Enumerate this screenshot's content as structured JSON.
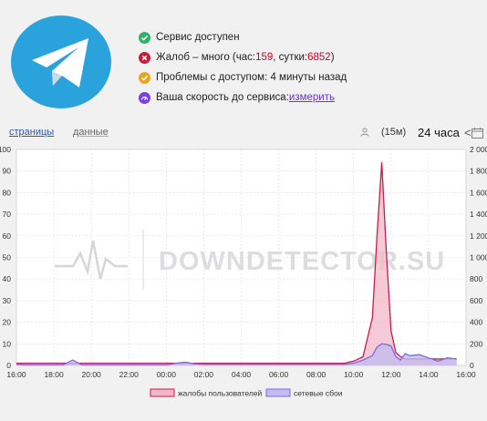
{
  "service": {
    "logo_icon": "telegram-paper-plane-icon",
    "brand_color": "#2aa3dc"
  },
  "status": {
    "available": "Сервис доступен",
    "complaints_prefix": "Жалоб – много (час: ",
    "complaints_hour": "159",
    "complaints_mid": ", сутки: ",
    "complaints_day": "6852",
    "complaints_suffix": ")",
    "problems": "Проблемы с доступом: 4 минуты назад",
    "speed_prefix": "Ваша скорость до сервиса: ",
    "speed_link": "измерить",
    "colors": {
      "ok": "#2fb26a",
      "error": "#c81d3c",
      "warn": "#e6a623",
      "speed": "#7b3fe4"
    }
  },
  "tabs": {
    "pages": "страницы",
    "data": "данные"
  },
  "controls": {
    "interval": "(15м)",
    "range": "24 часа",
    "prev": "<"
  },
  "watermark": "DOWNDETECTOR.SU",
  "chart_data": {
    "type": "area",
    "x": [
      "16:00",
      "16:30",
      "17:00",
      "17:30",
      "18:00",
      "18:30",
      "19:00",
      "19:30",
      "20:00",
      "20:30",
      "21:00",
      "21:30",
      "22:00",
      "22:30",
      "23:00",
      "23:30",
      "00:00",
      "00:30",
      "01:00",
      "01:30",
      "02:00",
      "02:30",
      "03:00",
      "03:30",
      "04:00",
      "04:30",
      "05:00",
      "05:30",
      "06:00",
      "06:30",
      "07:00",
      "07:30",
      "08:00",
      "08:30",
      "09:00",
      "09:30",
      "10:00",
      "10:30",
      "11:00",
      "11:15",
      "11:30",
      "11:45",
      "12:00",
      "12:15",
      "12:30",
      "12:45",
      "13:00",
      "13:30",
      "14:00",
      "14:30",
      "15:00",
      "15:30"
    ],
    "x_ticks": [
      "16:00",
      "18:00",
      "20:00",
      "22:00",
      "00:00",
      "02:00",
      "04:00",
      "06:00",
      "08:00",
      "10:00",
      "12:00",
      "14:00",
      "16:00"
    ],
    "series": [
      {
        "name": "жалобы пользователей",
        "color": "#c81d4a",
        "fill": "#f2b8c8",
        "axis": "left",
        "values": [
          1,
          1,
          1,
          1,
          1,
          1,
          1,
          1,
          1,
          1,
          1,
          1,
          1,
          1,
          1,
          1,
          1,
          1,
          1,
          1,
          1,
          1,
          1,
          1,
          1,
          1,
          1,
          1,
          1,
          1,
          1,
          1,
          1,
          1,
          1,
          1,
          2,
          4,
          22,
          60,
          94,
          52,
          16,
          6,
          4,
          3,
          3,
          3,
          3,
          3,
          3,
          3
        ]
      },
      {
        "name": "сетевые сбои",
        "color": "#7b6ae0",
        "fill": "#c3bcef",
        "axis": "right",
        "values": [
          10,
          5,
          5,
          5,
          5,
          5,
          50,
          5,
          5,
          5,
          5,
          5,
          5,
          5,
          5,
          5,
          5,
          20,
          30,
          15,
          10,
          10,
          10,
          10,
          10,
          10,
          10,
          10,
          10,
          10,
          10,
          10,
          10,
          10,
          10,
          10,
          20,
          50,
          90,
          170,
          200,
          195,
          180,
          80,
          50,
          110,
          90,
          100,
          70,
          40,
          70,
          60
        ]
      }
    ],
    "y_left": {
      "ticks": [
        0,
        10,
        20,
        30,
        40,
        50,
        60,
        70,
        80,
        90,
        100
      ],
      "range": [
        0,
        100
      ]
    },
    "y_right": {
      "ticks": [
        "0",
        "200",
        "400",
        "600",
        "800",
        "1 000",
        "1 200",
        "1 400",
        "1 600",
        "1 800",
        "2 000"
      ],
      "range": [
        0,
        2000
      ]
    },
    "grid": true,
    "legend": "bottom-center"
  }
}
